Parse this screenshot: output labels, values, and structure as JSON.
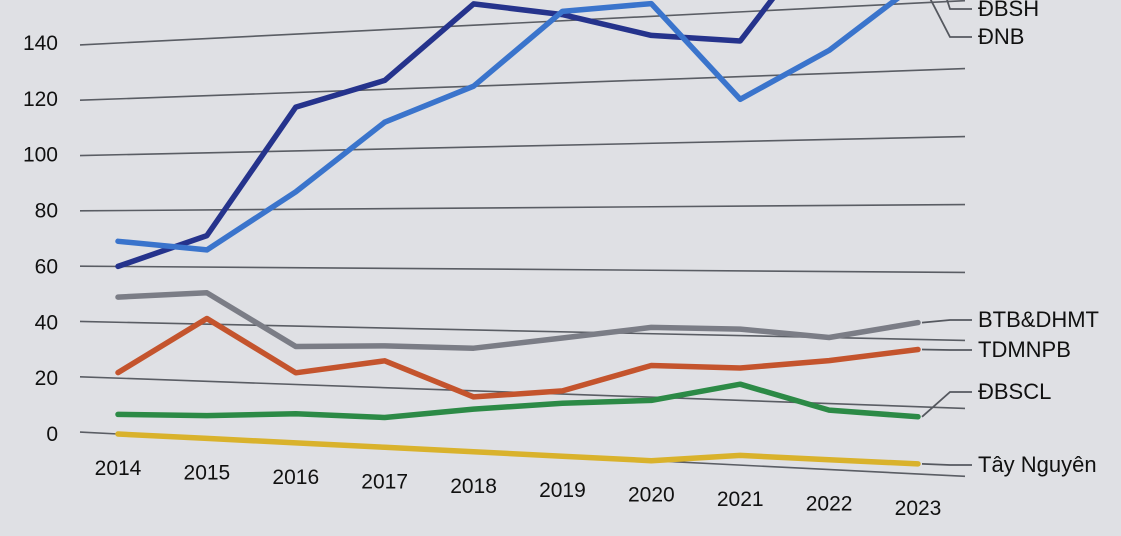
{
  "chart_data": {
    "type": "line",
    "title": "",
    "xlabel": "",
    "ylabel": "",
    "x": [
      "2014",
      "2015",
      "2016",
      "2017",
      "2018",
      "2019",
      "2020",
      "2021",
      "2022",
      "2023"
    ],
    "y_ticks": [
      "0",
      "20",
      "40",
      "60",
      "80",
      "100",
      "120",
      "140"
    ],
    "ylim": [
      0,
      155
    ],
    "grid": true,
    "legend_placement": "right end of each line",
    "series": [
      {
        "name": "ĐBSH",
        "color": "#25338c",
        "values": [
          60,
          71,
          115,
          123,
          147,
          142,
          134,
          131,
          165,
          164
        ]
      },
      {
        "name": "ĐNB",
        "color": "#3a74cc",
        "values": [
          69,
          66,
          86,
          109,
          120,
          143,
          144,
          113,
          127,
          146
        ]
      },
      {
        "name": "BTB&DHMT",
        "color": "#7b7d86",
        "values": [
          49,
          51,
          33,
          34,
          34,
          38,
          42,
          42,
          40,
          45
        ]
      },
      {
        "name": "TDMNPB",
        "color": "#c4542d",
        "values": [
          22,
          42,
          24,
          29,
          18,
          21,
          30,
          30,
          33,
          37
        ]
      },
      {
        "name": "ĐBSCL",
        "color": "#2c8a46",
        "values": [
          7,
          8,
          10,
          10,
          14,
          17,
          19,
          25,
          18,
          17
        ]
      },
      {
        "name": "Tây Nguyên",
        "color": "#d9b22c",
        "values": [
          0,
          0,
          0,
          0,
          0,
          0,
          0,
          3,
          3,
          3
        ]
      }
    ]
  }
}
